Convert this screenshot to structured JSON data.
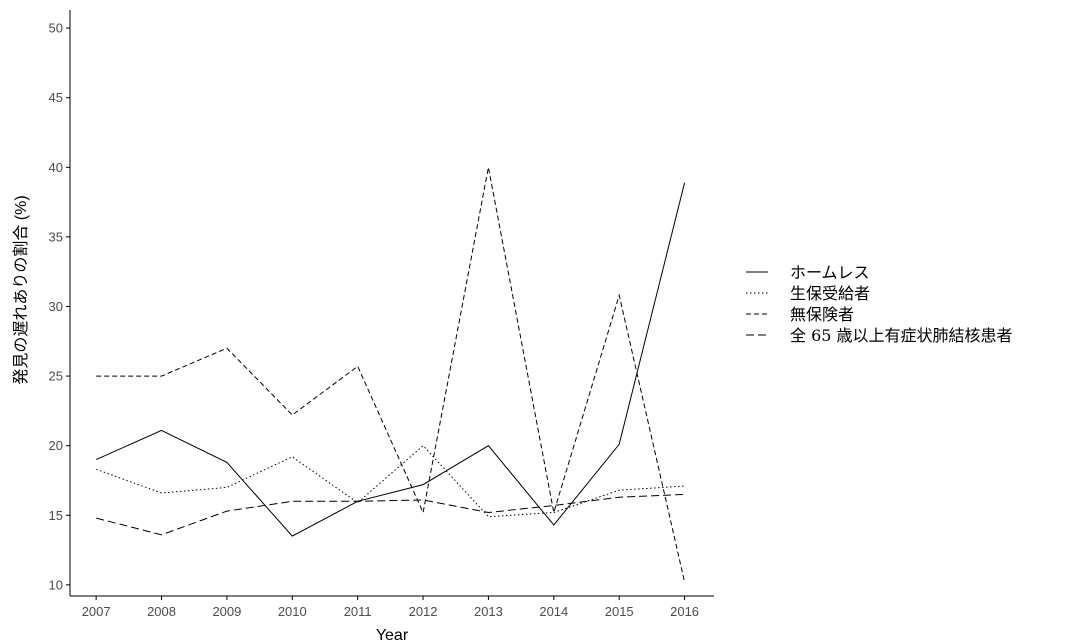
{
  "chart_data": {
    "type": "line",
    "title": "",
    "xlabel": "Year",
    "ylabel": "発見の遅れありの割合 (%)",
    "x": [
      2007,
      2008,
      2009,
      2010,
      2011,
      2012,
      2013,
      2014,
      2015,
      2016
    ],
    "y_ticks": [
      10,
      15,
      20,
      25,
      30,
      35,
      40,
      45,
      50
    ],
    "ylim": [
      9.2,
      51.3
    ],
    "grid": false,
    "legend_position": "right",
    "series": [
      {
        "name": "ホームレス",
        "dash": "solid",
        "values": [
          19.0,
          21.1,
          18.8,
          13.5,
          16.0,
          17.2,
          20.0,
          14.3,
          20.1,
          38.9
        ]
      },
      {
        "name": "生保受給者",
        "dash": "dotted",
        "values": [
          18.3,
          16.6,
          17.0,
          19.2,
          15.9,
          20.0,
          14.9,
          15.2,
          16.8,
          17.1
        ]
      },
      {
        "name": "無保険者",
        "dash": "dashed",
        "values": [
          25.0,
          25.0,
          27.0,
          22.2,
          25.7,
          15.2,
          40.0,
          15.2,
          30.8,
          10.2
        ]
      },
      {
        "name": "全 65 歳以上有症状肺結核患者",
        "dash": "longdash",
        "values": [
          14.8,
          13.6,
          15.3,
          16.0,
          16.0,
          16.1,
          15.2,
          15.7,
          16.3,
          16.5
        ]
      }
    ]
  }
}
